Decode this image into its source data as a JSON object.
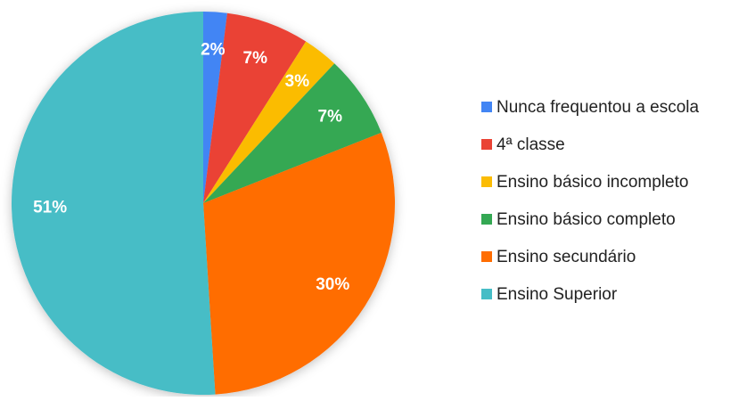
{
  "chart_data": {
    "type": "pie",
    "categories": [
      "Nunca frequentou a escola",
      "4ª classe",
      "Ensino básico incompleto",
      "Ensino básico completo",
      "Ensino secundário",
      "Ensino Superior"
    ],
    "values": [
      2,
      7,
      3,
      7,
      30,
      51
    ],
    "value_labels": [
      "2%",
      "7%",
      "3%",
      "7%",
      "30%",
      "51%"
    ],
    "colors": [
      "#4285f4",
      "#ea4335",
      "#fbbc04",
      "#34a853",
      "#ff6d01",
      "#46bdc6"
    ],
    "legend": "right"
  }
}
